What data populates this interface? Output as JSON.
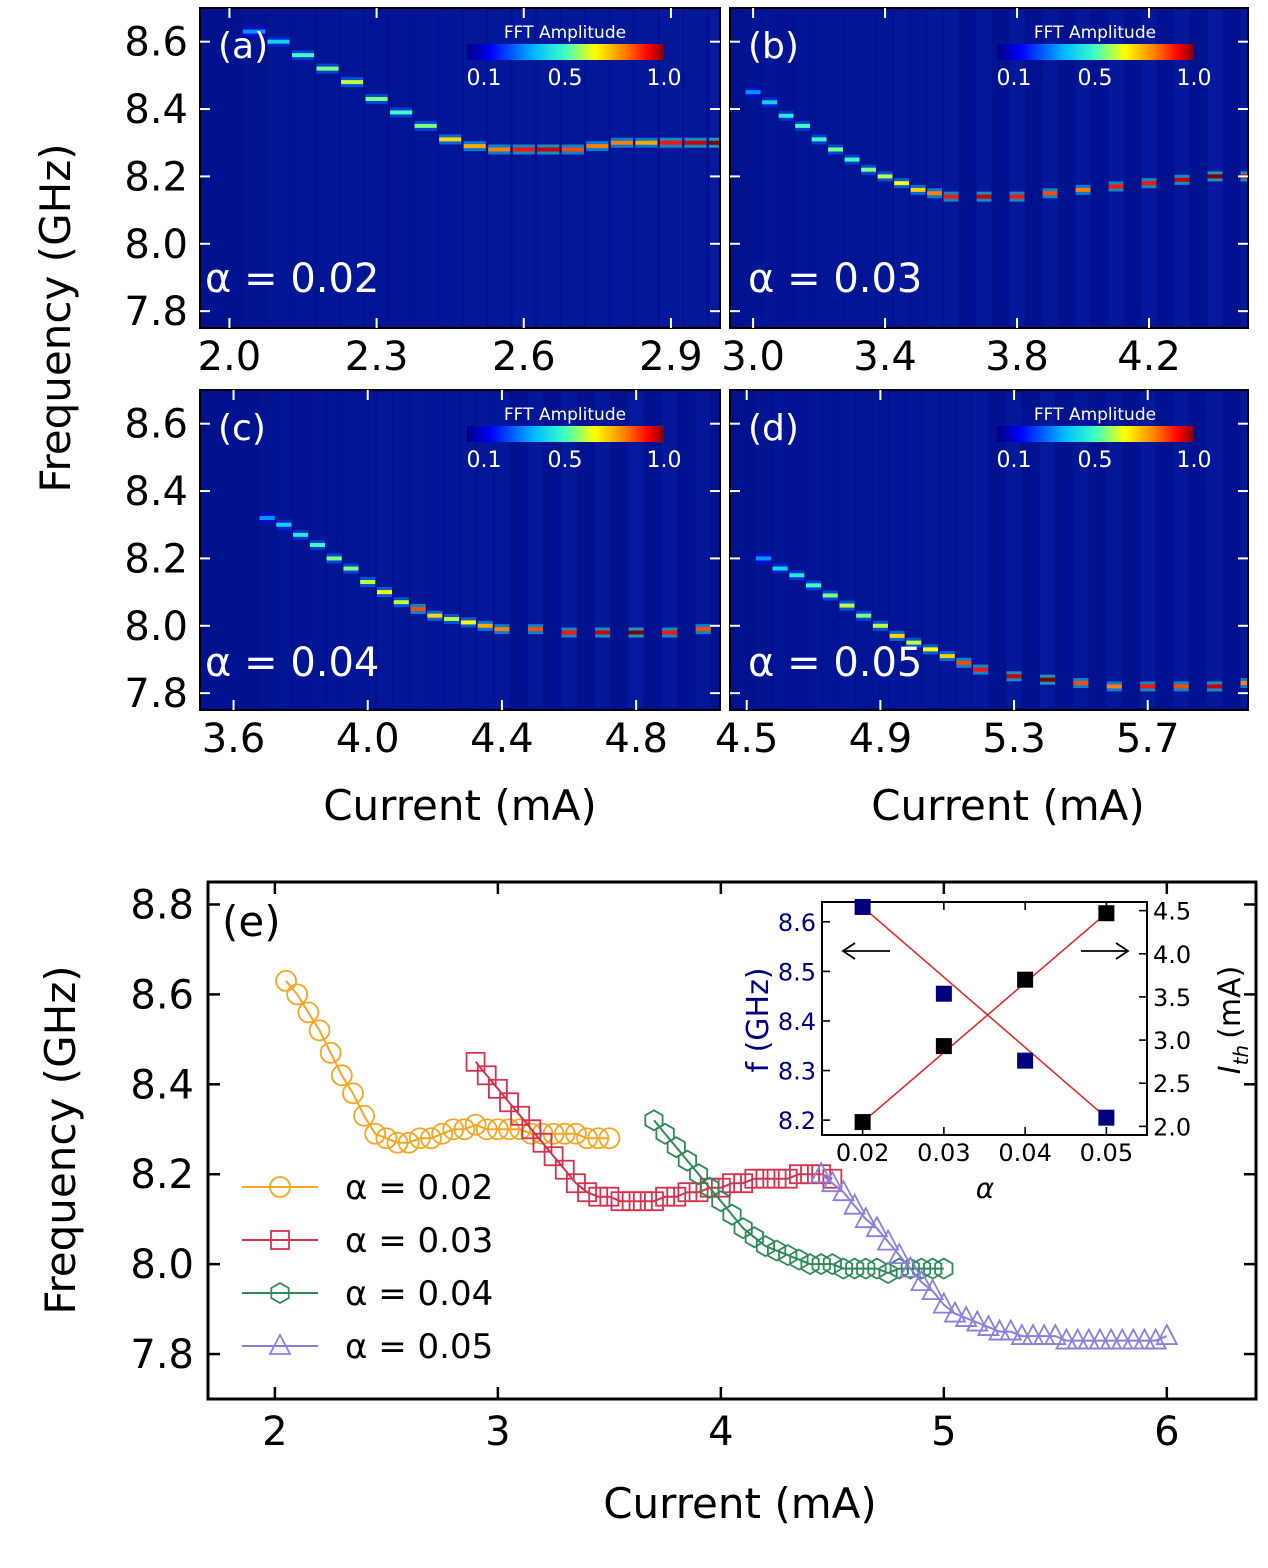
{
  "figure": {
    "top_ylabel": "Frequency (GHz)",
    "top_xlabel": "Current (mA)",
    "colorbar_title": "FFT Amplitude",
    "colorbar_ticks": [
      "0.1",
      "0.5",
      "1.0"
    ],
    "colormap": [
      "#00007f",
      "#0000ff",
      "#00bfff",
      "#40ffbf",
      "#ffff00",
      "#ff7f00",
      "#ff0000",
      "#7f0000"
    ],
    "heatmap_background": "#00128f",
    "line_colors": {
      "a002": "#f5a623",
      "a003": "#d6324e",
      "a004": "#2e8b57",
      "a005": "#8a7fdc"
    },
    "inset_color": "#00007f"
  },
  "chart_data": [
    {
      "id": "a",
      "type": "heatmap",
      "panel_label": "(a)",
      "annotation": "α = 0.02",
      "xlim": [
        1.94,
        3.0
      ],
      "ylim": [
        7.75,
        8.7
      ],
      "xticks": [
        2.0,
        2.3,
        2.6,
        2.9
      ],
      "xtick_labels": [
        "2.0",
        "2.3",
        "2.6",
        "2.9"
      ],
      "yticks": [
        7.8,
        8.0,
        8.2,
        8.4,
        8.6
      ],
      "ytick_labels": [
        "7.8",
        "8.0",
        "8.2",
        "8.4",
        "8.6"
      ],
      "xlabel": "",
      "ylabel": "Frequency (GHz)",
      "ridge": {
        "x": [
          2.05,
          2.1,
          2.15,
          2.2,
          2.25,
          2.3,
          2.35,
          2.4,
          2.45,
          2.5,
          2.55,
          2.6,
          2.65,
          2.7,
          2.75,
          2.8,
          2.85,
          2.9,
          2.95,
          3.0
        ],
        "y": [
          8.63,
          8.6,
          8.56,
          8.52,
          8.48,
          8.43,
          8.39,
          8.35,
          8.31,
          8.29,
          8.28,
          8.28,
          8.28,
          8.28,
          8.29,
          8.3,
          8.3,
          8.3,
          8.3,
          8.3
        ],
        "amp": [
          0.3,
          0.4,
          0.5,
          0.55,
          0.6,
          0.55,
          0.5,
          0.55,
          0.7,
          0.75,
          0.8,
          0.9,
          0.95,
          0.85,
          0.8,
          0.8,
          0.75,
          0.9,
          0.95,
          1.0
        ]
      }
    },
    {
      "id": "b",
      "type": "heatmap",
      "panel_label": "(b)",
      "annotation": "α = 0.03",
      "xlim": [
        2.93,
        4.5
      ],
      "ylim": [
        7.75,
        8.7
      ],
      "xticks": [
        3.0,
        3.4,
        3.8,
        4.2
      ],
      "xtick_labels": [
        "3.0",
        "3.4",
        "3.8",
        "4.2"
      ],
      "yticks": [
        7.8,
        8.0,
        8.2,
        8.4,
        8.6
      ],
      "ytick_labels": [],
      "xlabel": "",
      "ylabel": "",
      "ridge": {
        "x": [
          3.0,
          3.05,
          3.1,
          3.15,
          3.2,
          3.25,
          3.3,
          3.35,
          3.4,
          3.45,
          3.5,
          3.55,
          3.6,
          3.7,
          3.8,
          3.9,
          4.0,
          4.1,
          4.2,
          4.3,
          4.4,
          4.5
        ],
        "y": [
          8.45,
          8.42,
          8.38,
          8.35,
          8.31,
          8.28,
          8.25,
          8.22,
          8.2,
          8.18,
          8.16,
          8.15,
          8.14,
          8.14,
          8.14,
          8.15,
          8.16,
          8.17,
          8.18,
          8.19,
          8.2,
          8.2
        ],
        "amp": [
          0.3,
          0.4,
          0.45,
          0.5,
          0.5,
          0.55,
          0.5,
          0.55,
          0.6,
          0.65,
          0.7,
          0.8,
          0.9,
          0.95,
          0.9,
          0.85,
          0.8,
          0.9,
          0.9,
          0.95,
          1.0,
          0.95
        ]
      }
    },
    {
      "id": "c",
      "type": "heatmap",
      "panel_label": "(c)",
      "annotation": "α = 0.04",
      "xlim": [
        3.5,
        5.05
      ],
      "ylim": [
        7.75,
        8.7
      ],
      "xticks": [
        3.6,
        4.0,
        4.4,
        4.8
      ],
      "xtick_labels": [
        "3.6",
        "4.0",
        "4.4",
        "4.8"
      ],
      "yticks": [
        7.8,
        8.0,
        8.2,
        8.4,
        8.6
      ],
      "ytick_labels": [
        "7.8",
        "8.0",
        "8.2",
        "8.4",
        "8.6"
      ],
      "xlabel": "Current (mA)",
      "ylabel": "",
      "ridge": {
        "x": [
          3.7,
          3.75,
          3.8,
          3.85,
          3.9,
          3.95,
          4.0,
          4.05,
          4.1,
          4.15,
          4.2,
          4.25,
          4.3,
          4.35,
          4.4,
          4.5,
          4.6,
          4.7,
          4.8,
          4.9,
          5.0
        ],
        "y": [
          8.32,
          8.3,
          8.27,
          8.24,
          8.2,
          8.17,
          8.13,
          8.1,
          8.07,
          8.05,
          8.03,
          8.02,
          8.01,
          8.0,
          7.99,
          7.99,
          7.98,
          7.98,
          7.98,
          7.98,
          7.99
        ],
        "amp": [
          0.3,
          0.4,
          0.45,
          0.5,
          0.55,
          0.55,
          0.6,
          0.65,
          0.6,
          0.85,
          0.7,
          0.6,
          0.65,
          0.75,
          0.8,
          0.85,
          0.9,
          0.95,
          1.0,
          0.9,
          0.85
        ]
      }
    },
    {
      "id": "d",
      "type": "heatmap",
      "panel_label": "(d)",
      "annotation": "α = 0.05",
      "xlim": [
        4.45,
        6.0
      ],
      "ylim": [
        7.75,
        8.7
      ],
      "xticks": [
        4.5,
        4.9,
        5.3,
        5.7
      ],
      "xtick_labels": [
        "4.5",
        "4.9",
        "5.3",
        "5.7"
      ],
      "yticks": [
        7.8,
        8.0,
        8.2,
        8.4,
        8.6
      ],
      "ytick_labels": [],
      "xlabel": "Current (mA)",
      "ylabel": "",
      "ridge": {
        "x": [
          4.55,
          4.6,
          4.65,
          4.7,
          4.75,
          4.8,
          4.85,
          4.9,
          4.95,
          5.0,
          5.05,
          5.1,
          5.15,
          5.2,
          5.3,
          5.4,
          5.5,
          5.6,
          5.7,
          5.8,
          5.9,
          6.0
        ],
        "y": [
          8.2,
          8.17,
          8.15,
          8.12,
          8.09,
          8.06,
          8.03,
          8.0,
          7.97,
          7.95,
          7.93,
          7.91,
          7.89,
          7.87,
          7.85,
          7.84,
          7.83,
          7.82,
          7.82,
          7.82,
          7.82,
          7.83
        ],
        "amp": [
          0.3,
          0.4,
          0.45,
          0.5,
          0.55,
          0.6,
          0.55,
          0.6,
          0.7,
          0.6,
          0.65,
          0.7,
          0.85,
          0.9,
          0.95,
          1.0,
          0.85,
          0.8,
          0.9,
          0.85,
          0.95,
          0.8
        ]
      }
    },
    {
      "id": "e",
      "type": "line",
      "panel_label": "(e)",
      "xlabel": "Current (mA)",
      "ylabel": "Frequency (GHz)",
      "xlim": [
        1.7,
        6.4
      ],
      "ylim": [
        7.7,
        8.85
      ],
      "xticks": [
        2,
        3,
        4,
        5,
        6
      ],
      "xtick_labels": [
        "2",
        "3",
        "4",
        "5",
        "6"
      ],
      "yticks": [
        7.8,
        8.0,
        8.2,
        8.4,
        8.6,
        8.8
      ],
      "ytick_labels": [
        "7.8",
        "8.0",
        "8.2",
        "8.4",
        "8.6",
        "8.8"
      ],
      "legend_position": "lower-left",
      "series": [
        {
          "name": "α = 0.02",
          "marker": "circle",
          "color": "#f5a623",
          "x": [
            2.05,
            2.1,
            2.15,
            2.2,
            2.25,
            2.3,
            2.35,
            2.4,
            2.45,
            2.5,
            2.55,
            2.6,
            2.65,
            2.7,
            2.75,
            2.8,
            2.85,
            2.9,
            2.95,
            3.0,
            3.05,
            3.1,
            3.15,
            3.2,
            3.25,
            3.3,
            3.35,
            3.4,
            3.45,
            3.5
          ],
          "y": [
            8.63,
            8.6,
            8.56,
            8.52,
            8.47,
            8.42,
            8.38,
            8.33,
            8.29,
            8.28,
            8.27,
            8.27,
            8.28,
            8.28,
            8.29,
            8.3,
            8.3,
            8.31,
            8.3,
            8.3,
            8.3,
            8.3,
            8.29,
            8.29,
            8.29,
            8.29,
            8.29,
            8.28,
            8.28,
            8.28
          ]
        },
        {
          "name": "α = 0.03",
          "marker": "square",
          "color": "#d6324e",
          "x": [
            2.9,
            2.95,
            3.0,
            3.05,
            3.1,
            3.15,
            3.2,
            3.25,
            3.3,
            3.35,
            3.4,
            3.45,
            3.5,
            3.55,
            3.6,
            3.65,
            3.7,
            3.75,
            3.8,
            3.85,
            3.9,
            3.95,
            4.0,
            4.05,
            4.1,
            4.15,
            4.2,
            4.25,
            4.3,
            4.35,
            4.4,
            4.45,
            4.5
          ],
          "y": [
            8.45,
            8.42,
            8.39,
            8.36,
            8.33,
            8.3,
            8.27,
            8.24,
            8.21,
            8.18,
            8.16,
            8.15,
            8.15,
            8.14,
            8.14,
            8.14,
            8.14,
            8.15,
            8.15,
            8.16,
            8.16,
            8.17,
            8.17,
            8.18,
            8.18,
            8.19,
            8.19,
            8.19,
            8.19,
            8.2,
            8.2,
            8.2,
            8.19
          ]
        },
        {
          "name": "α = 0.04",
          "marker": "hexagon",
          "color": "#2e8b57",
          "x": [
            3.7,
            3.75,
            3.8,
            3.85,
            3.9,
            3.95,
            4.0,
            4.05,
            4.1,
            4.15,
            4.2,
            4.25,
            4.3,
            4.35,
            4.4,
            4.45,
            4.5,
            4.55,
            4.6,
            4.65,
            4.7,
            4.75,
            4.8,
            4.85,
            4.9,
            4.95,
            5.0
          ],
          "y": [
            8.32,
            8.29,
            8.26,
            8.23,
            8.2,
            8.17,
            8.14,
            8.11,
            8.08,
            8.06,
            8.04,
            8.03,
            8.02,
            8.01,
            8.0,
            8.0,
            8.0,
            7.99,
            7.99,
            7.99,
            7.99,
            7.98,
            7.99,
            7.99,
            7.99,
            7.99,
            7.99
          ]
        },
        {
          "name": "α = 0.05",
          "marker": "triangle",
          "color": "#8a7fdc",
          "x": [
            4.45,
            4.5,
            4.55,
            4.6,
            4.65,
            4.7,
            4.75,
            4.8,
            4.85,
            4.9,
            4.95,
            5.0,
            5.05,
            5.1,
            5.15,
            5.2,
            5.25,
            5.3,
            5.35,
            5.4,
            5.45,
            5.5,
            5.55,
            5.6,
            5.65,
            5.7,
            5.75,
            5.8,
            5.85,
            5.9,
            5.95,
            6.0
          ],
          "y": [
            8.2,
            8.18,
            8.16,
            8.13,
            8.1,
            8.08,
            8.05,
            8.02,
            7.99,
            7.96,
            7.94,
            7.91,
            7.89,
            7.88,
            7.87,
            7.86,
            7.85,
            7.85,
            7.84,
            7.84,
            7.84,
            7.84,
            7.83,
            7.83,
            7.83,
            7.83,
            7.83,
            7.83,
            7.83,
            7.83,
            7.83,
            7.84
          ]
        }
      ]
    },
    {
      "id": "inset",
      "type": "scatter",
      "xlabel": "α",
      "ylabel_left": "f (GHz)",
      "ylabel_right": "I_th (mA)",
      "ylabel_right_main": "I",
      "ylabel_right_sub": "th",
      "ylabel_right_unit": "(mA)",
      "xlim": [
        0.015,
        0.055
      ],
      "ylim_left": [
        8.17,
        8.64
      ],
      "ylim_right": [
        1.9,
        4.6
      ],
      "xticks": [
        0.02,
        0.03,
        0.04,
        0.05
      ],
      "xtick_labels": [
        "0.02",
        "0.03",
        "0.04",
        "0.05"
      ],
      "yticks_left": [
        8.2,
        8.3,
        8.4,
        8.5,
        8.6
      ],
      "ytick_labels_left": [
        "8.2",
        "8.3",
        "8.4",
        "8.5",
        "8.6"
      ],
      "yticks_right": [
        2.0,
        2.5,
        3.0,
        3.5,
        4.0,
        4.5
      ],
      "ytick_labels_right": [
        "2.0",
        "2.5",
        "3.0",
        "3.5",
        "4.0",
        "4.5"
      ],
      "series": [
        {
          "name": "f (GHz)",
          "axis": "left",
          "color": "#00007f",
          "alpha": [
            0.02,
            0.03,
            0.04,
            0.05
          ],
          "values": [
            8.63,
            8.455,
            8.32,
            8.205
          ]
        },
        {
          "name": "I_th (mA)",
          "axis": "right",
          "color": "#000000",
          "alpha": [
            0.02,
            0.03,
            0.04,
            0.05
          ],
          "values": [
            2.05,
            2.93,
            3.7,
            4.47
          ]
        }
      ]
    }
  ]
}
